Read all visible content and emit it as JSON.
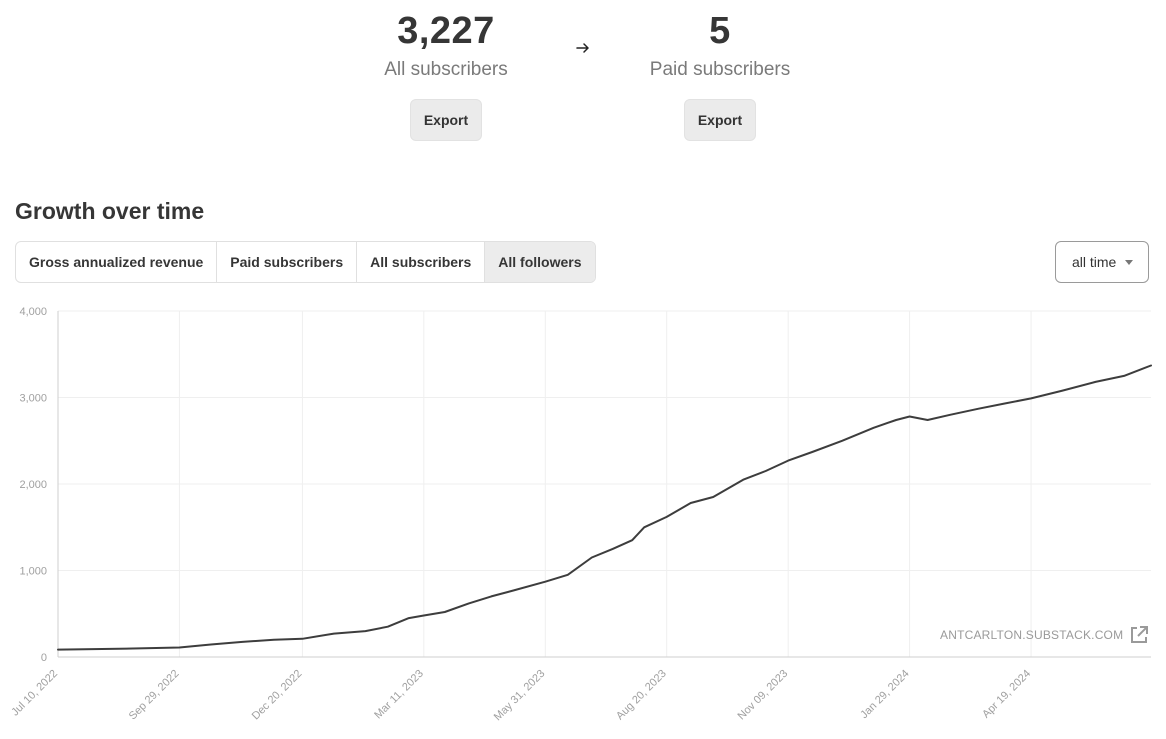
{
  "stats": {
    "all": {
      "value": "3,227",
      "label": "All subscribers",
      "export_label": "Export"
    },
    "paid": {
      "value": "5",
      "label": "Paid subscribers",
      "export_label": "Export"
    }
  },
  "growth": {
    "title": "Growth over time",
    "tabs": [
      {
        "label": "Gross annualized revenue",
        "active": false
      },
      {
        "label": "Paid subscribers",
        "active": false
      },
      {
        "label": "All subscribers",
        "active": false
      },
      {
        "label": "All followers",
        "active": true
      }
    ],
    "range": {
      "selected": "all time"
    }
  },
  "watermark": {
    "text": "ANTCARLTON.SUBSTACK.COM",
    "icon": "external-link-icon"
  },
  "colors": {
    "line": "#3d3d3d",
    "grid": "#efefef",
    "axis": "#cfcfcf",
    "tick_text": "#a0a0a0"
  },
  "chart_data": {
    "type": "line",
    "x_is_date": true,
    "ylim": [
      0,
      4000
    ],
    "yticks": [
      0,
      1000,
      2000,
      3000,
      4000
    ],
    "ytick_labels": [
      "0",
      "1,000",
      "2,000",
      "3,000",
      "4,000"
    ],
    "xlim": [
      "2022-07-10",
      "2024-07-08"
    ],
    "xticks": [
      "2022-07-10",
      "2022-09-29",
      "2022-12-20",
      "2023-03-11",
      "2023-05-31",
      "2023-08-20",
      "2023-11-09",
      "2024-01-29",
      "2024-04-19"
    ],
    "xtick_labels": [
      "Jul 10, 2022",
      "Sep 29, 2022",
      "Dec 20, 2022",
      "Mar 11, 2023",
      "May 31, 2023",
      "Aug 20, 2023",
      "Nov 09, 2023",
      "Jan 29, 2024",
      "Apr 19, 2024"
    ],
    "grid": true,
    "series": [
      {
        "x": [
          "2022-07-10",
          "2022-08-20",
          "2022-09-29",
          "2022-10-20",
          "2022-11-10",
          "2022-12-01",
          "2022-12-20",
          "2023-01-10",
          "2023-01-31",
          "2023-02-15",
          "2023-03-01",
          "2023-03-11",
          "2023-03-25",
          "2023-04-10",
          "2023-04-25",
          "2023-05-10",
          "2023-05-31",
          "2023-06-15",
          "2023-07-01",
          "2023-07-15",
          "2023-07-28",
          "2023-08-05",
          "2023-08-20",
          "2023-09-05",
          "2023-09-20",
          "2023-10-10",
          "2023-10-25",
          "2023-11-09",
          "2023-11-25",
          "2023-12-15",
          "2024-01-05",
          "2024-01-20",
          "2024-01-29",
          "2024-02-10",
          "2024-02-25",
          "2024-03-15",
          "2024-04-01",
          "2024-04-19",
          "2024-05-10",
          "2024-06-01",
          "2024-06-20",
          "2024-07-08"
        ],
        "y": [
          85,
          95,
          110,
          145,
          175,
          200,
          210,
          270,
          300,
          350,
          450,
          480,
          520,
          620,
          700,
          770,
          870,
          950,
          1150,
          1250,
          1350,
          1500,
          1620,
          1780,
          1850,
          2050,
          2150,
          2270,
          2370,
          2500,
          2650,
          2740,
          2780,
          2740,
          2800,
          2870,
          2930,
          2990,
          3080,
          3180,
          3250,
          3370
        ]
      }
    ]
  }
}
